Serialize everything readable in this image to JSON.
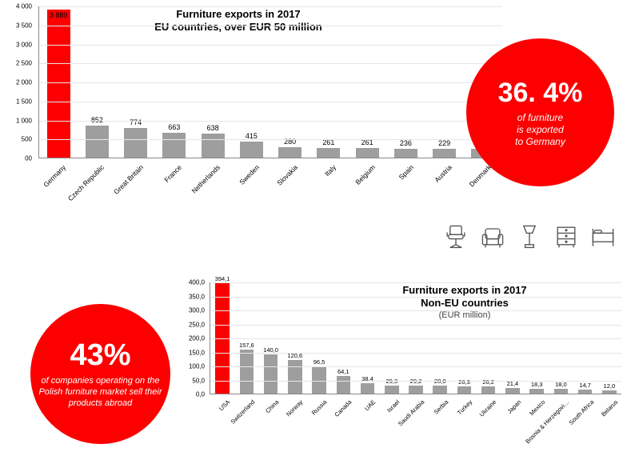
{
  "colors": {
    "accent": "#fc0000",
    "bar_default": "#9e9e9e",
    "bar_highlight": "#fc0000",
    "grid": "#e6e6e6",
    "axis": "#888888",
    "background": "#ffffff",
    "text": "#000000"
  },
  "top_chart": {
    "type": "bar",
    "title_line1": "Furniture exports in 2017",
    "title_line2": "EU countries, over EUR 50 million",
    "title_fontsize": 13,
    "label_fontsize": 8.5,
    "value_fontsize": 9,
    "ymax": 4000,
    "ymin": 0,
    "ytick_step": 500,
    "yticks": [
      "4 000",
      "3 500",
      "3 000",
      "2 500",
      "2 000",
      "1 500",
      "1 000",
      "500",
      "00"
    ],
    "bar_width": 0.6,
    "categories": [
      "Germany",
      "Czech Republic",
      "Great Britain",
      "France",
      "Netherlands",
      "Sweden",
      "Slovakia",
      "Italy",
      "Belgium",
      "Spain",
      "Austria",
      "Denmark"
    ],
    "values": [
      3889,
      852,
      774,
      663,
      638,
      415,
      280,
      261,
      261,
      236,
      229,
      225
    ],
    "value_labels": [
      "3 889",
      "852",
      "774",
      "663",
      "638",
      "415",
      "280",
      "261",
      "261",
      "236",
      "229",
      "225"
    ],
    "highlight_index": 0
  },
  "stat1": {
    "pct": "36. 4%",
    "line1": "of furniture",
    "line2": "is exported",
    "line3": "to Germany"
  },
  "bottom_chart": {
    "type": "bar",
    "title_line1": "Furniture exports in 2017",
    "title_line2": "Non-EU countries",
    "subtitle": "(EUR million)",
    "title_fontsize": 13,
    "label_fontsize": 7.5,
    "value_fontsize": 7.5,
    "ymax": 400,
    "ymin": 0,
    "ytick_step": 50,
    "yticks": [
      "400,0",
      "350,0",
      "300,0",
      "250,0",
      "200,0",
      "150,0",
      "100,0",
      "50,0",
      "0,0"
    ],
    "bar_width": 0.58,
    "categories": [
      "USA",
      "Switzerland",
      "China",
      "Norway",
      "Russia",
      "Canada",
      "UAE",
      "Israel",
      "Saudi Arabia",
      "Serbia",
      "Turkey",
      "Ukraine",
      "Japan",
      "Mexico",
      "Bosnia & Herzegovi…",
      "South Africa",
      "Belarus"
    ],
    "values": [
      394.1,
      157.6,
      140.0,
      120.6,
      96.5,
      64.1,
      38.4,
      29.3,
      29.2,
      28.0,
      26.3,
      26.2,
      21.4,
      18.3,
      18.0,
      14.7,
      12.0
    ],
    "value_labels": [
      "394,1",
      "157,6",
      "140,0",
      "120,6",
      "96,5",
      "64,1",
      "38,4",
      "29,3",
      "29,2",
      "28,0",
      "26,3",
      "26,2",
      "21,4",
      "18,3",
      "18,0",
      "14,7",
      "12,0"
    ],
    "highlight_index": 0
  },
  "stat2": {
    "pct": "43%",
    "text": "of companies operating on the Polish furniture market sell their products abroad"
  },
  "furniture_icons": [
    "office-chair",
    "armchair",
    "lamp",
    "dresser",
    "bed"
  ]
}
